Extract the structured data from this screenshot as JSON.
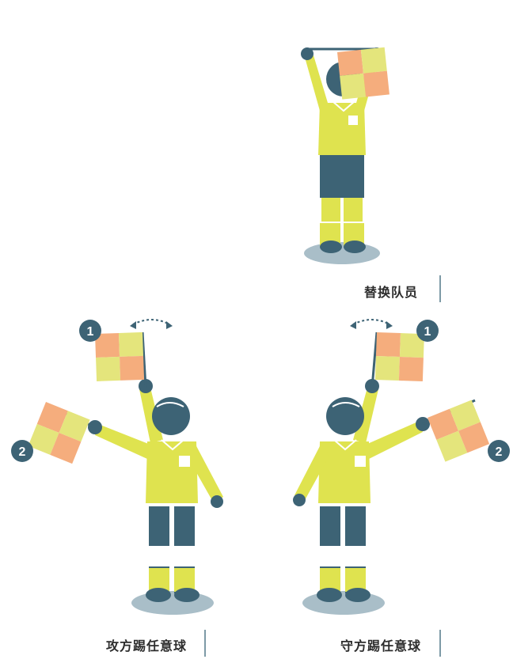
{
  "captions": {
    "substitution": "替换队员",
    "attacking_free_kick": "攻方踢任意球",
    "defending_free_kick": "守方踢任意球"
  },
  "step_badges": {
    "left_first": "1",
    "left_second": "2",
    "right_first": "1",
    "right_second": "2"
  },
  "colors": {
    "jersey": "#dfe34f",
    "shorts": "#3d6375",
    "skin": "#3d6375",
    "shadow": "#a9bec8",
    "flag_orange": "#f5ad7d",
    "flag_yellow": "#e4e57c",
    "badge": "#3d6375",
    "divider": "#7d9aa6",
    "caption_text": "#2d2d2d"
  }
}
